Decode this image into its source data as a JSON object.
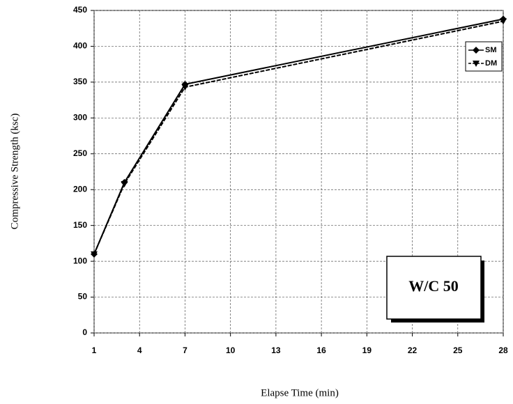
{
  "chart_data": {
    "type": "line",
    "x_label": "Elapse Time (min)",
    "y_label": "Compressive Strength (ksc)",
    "annotation": "W/C 50",
    "x": [
      1,
      3,
      7,
      28
    ],
    "series": [
      {
        "name": "SM",
        "color": "#000000",
        "marker": "diamond",
        "values": [
          110,
          210,
          347,
          438
        ]
      },
      {
        "name": "DM",
        "color": "#000000",
        "marker": "triangle",
        "values": [
          110,
          208,
          343,
          435
        ]
      }
    ],
    "xlim": [
      1,
      28
    ],
    "xticks": [
      1,
      4,
      7,
      10,
      13,
      16,
      19,
      22,
      25,
      28
    ],
    "ylim": [
      0,
      450
    ],
    "yticks": [
      0,
      50,
      100,
      150,
      200,
      250,
      300,
      350,
      400,
      450
    ],
    "grid": true,
    "legend": "upper right"
  }
}
